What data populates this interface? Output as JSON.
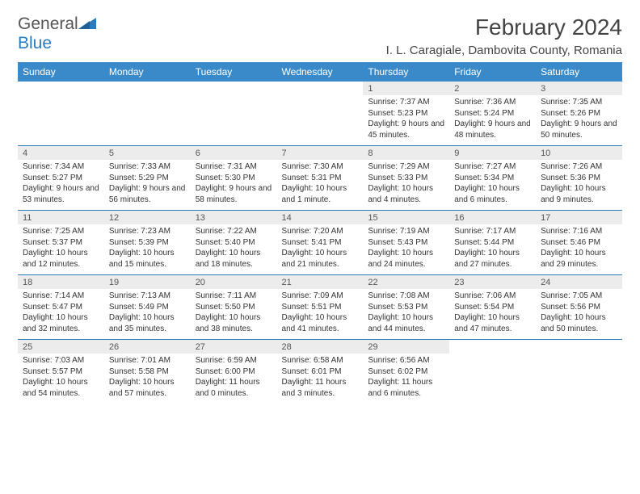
{
  "brand": {
    "word1": "General",
    "word2": "Blue"
  },
  "title": "February 2024",
  "location": "I. L. Caragiale, Dambovita County, Romania",
  "colors": {
    "header_bg": "#3a8ac9",
    "rule": "#2b7bbf",
    "daynum_bg": "#ececec",
    "text": "#333333",
    "subtle": "#555555"
  },
  "dow": [
    "Sunday",
    "Monday",
    "Tuesday",
    "Wednesday",
    "Thursday",
    "Friday",
    "Saturday"
  ],
  "layout": {
    "columns": 7,
    "rows": 5,
    "first_day_index": 4
  },
  "days": [
    {
      "n": "1",
      "sr": "Sunrise: 7:37 AM",
      "ss": "Sunset: 5:23 PM",
      "dl": "Daylight: 9 hours and 45 minutes."
    },
    {
      "n": "2",
      "sr": "Sunrise: 7:36 AM",
      "ss": "Sunset: 5:24 PM",
      "dl": "Daylight: 9 hours and 48 minutes."
    },
    {
      "n": "3",
      "sr": "Sunrise: 7:35 AM",
      "ss": "Sunset: 5:26 PM",
      "dl": "Daylight: 9 hours and 50 minutes."
    },
    {
      "n": "4",
      "sr": "Sunrise: 7:34 AM",
      "ss": "Sunset: 5:27 PM",
      "dl": "Daylight: 9 hours and 53 minutes."
    },
    {
      "n": "5",
      "sr": "Sunrise: 7:33 AM",
      "ss": "Sunset: 5:29 PM",
      "dl": "Daylight: 9 hours and 56 minutes."
    },
    {
      "n": "6",
      "sr": "Sunrise: 7:31 AM",
      "ss": "Sunset: 5:30 PM",
      "dl": "Daylight: 9 hours and 58 minutes."
    },
    {
      "n": "7",
      "sr": "Sunrise: 7:30 AM",
      "ss": "Sunset: 5:31 PM",
      "dl": "Daylight: 10 hours and 1 minute."
    },
    {
      "n": "8",
      "sr": "Sunrise: 7:29 AM",
      "ss": "Sunset: 5:33 PM",
      "dl": "Daylight: 10 hours and 4 minutes."
    },
    {
      "n": "9",
      "sr": "Sunrise: 7:27 AM",
      "ss": "Sunset: 5:34 PM",
      "dl": "Daylight: 10 hours and 6 minutes."
    },
    {
      "n": "10",
      "sr": "Sunrise: 7:26 AM",
      "ss": "Sunset: 5:36 PM",
      "dl": "Daylight: 10 hours and 9 minutes."
    },
    {
      "n": "11",
      "sr": "Sunrise: 7:25 AM",
      "ss": "Sunset: 5:37 PM",
      "dl": "Daylight: 10 hours and 12 minutes."
    },
    {
      "n": "12",
      "sr": "Sunrise: 7:23 AM",
      "ss": "Sunset: 5:39 PM",
      "dl": "Daylight: 10 hours and 15 minutes."
    },
    {
      "n": "13",
      "sr": "Sunrise: 7:22 AM",
      "ss": "Sunset: 5:40 PM",
      "dl": "Daylight: 10 hours and 18 minutes."
    },
    {
      "n": "14",
      "sr": "Sunrise: 7:20 AM",
      "ss": "Sunset: 5:41 PM",
      "dl": "Daylight: 10 hours and 21 minutes."
    },
    {
      "n": "15",
      "sr": "Sunrise: 7:19 AM",
      "ss": "Sunset: 5:43 PM",
      "dl": "Daylight: 10 hours and 24 minutes."
    },
    {
      "n": "16",
      "sr": "Sunrise: 7:17 AM",
      "ss": "Sunset: 5:44 PM",
      "dl": "Daylight: 10 hours and 27 minutes."
    },
    {
      "n": "17",
      "sr": "Sunrise: 7:16 AM",
      "ss": "Sunset: 5:46 PM",
      "dl": "Daylight: 10 hours and 29 minutes."
    },
    {
      "n": "18",
      "sr": "Sunrise: 7:14 AM",
      "ss": "Sunset: 5:47 PM",
      "dl": "Daylight: 10 hours and 32 minutes."
    },
    {
      "n": "19",
      "sr": "Sunrise: 7:13 AM",
      "ss": "Sunset: 5:49 PM",
      "dl": "Daylight: 10 hours and 35 minutes."
    },
    {
      "n": "20",
      "sr": "Sunrise: 7:11 AM",
      "ss": "Sunset: 5:50 PM",
      "dl": "Daylight: 10 hours and 38 minutes."
    },
    {
      "n": "21",
      "sr": "Sunrise: 7:09 AM",
      "ss": "Sunset: 5:51 PM",
      "dl": "Daylight: 10 hours and 41 minutes."
    },
    {
      "n": "22",
      "sr": "Sunrise: 7:08 AM",
      "ss": "Sunset: 5:53 PM",
      "dl": "Daylight: 10 hours and 44 minutes."
    },
    {
      "n": "23",
      "sr": "Sunrise: 7:06 AM",
      "ss": "Sunset: 5:54 PM",
      "dl": "Daylight: 10 hours and 47 minutes."
    },
    {
      "n": "24",
      "sr": "Sunrise: 7:05 AM",
      "ss": "Sunset: 5:56 PM",
      "dl": "Daylight: 10 hours and 50 minutes."
    },
    {
      "n": "25",
      "sr": "Sunrise: 7:03 AM",
      "ss": "Sunset: 5:57 PM",
      "dl": "Daylight: 10 hours and 54 minutes."
    },
    {
      "n": "26",
      "sr": "Sunrise: 7:01 AM",
      "ss": "Sunset: 5:58 PM",
      "dl": "Daylight: 10 hours and 57 minutes."
    },
    {
      "n": "27",
      "sr": "Sunrise: 6:59 AM",
      "ss": "Sunset: 6:00 PM",
      "dl": "Daylight: 11 hours and 0 minutes."
    },
    {
      "n": "28",
      "sr": "Sunrise: 6:58 AM",
      "ss": "Sunset: 6:01 PM",
      "dl": "Daylight: 11 hours and 3 minutes."
    },
    {
      "n": "29",
      "sr": "Sunrise: 6:56 AM",
      "ss": "Sunset: 6:02 PM",
      "dl": "Daylight: 11 hours and 6 minutes."
    }
  ]
}
